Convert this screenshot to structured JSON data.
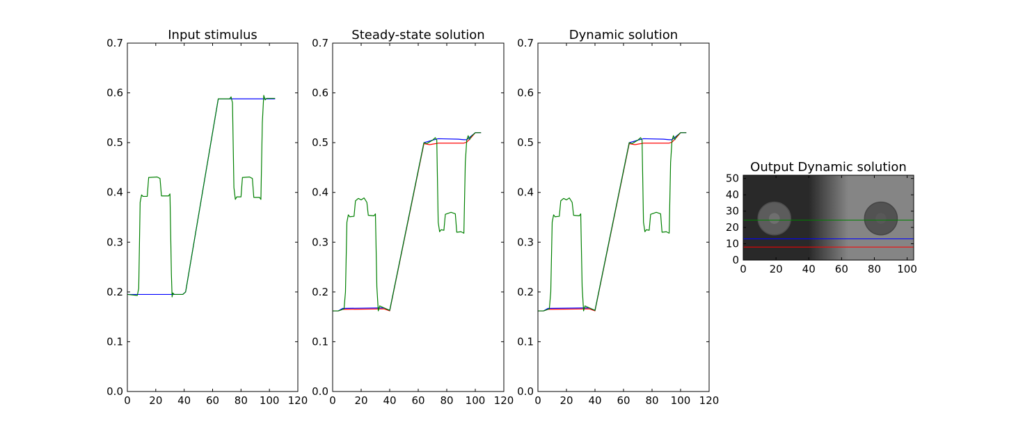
{
  "chart_data": [
    {
      "type": "line",
      "title": "Input stimulus",
      "xlim": [
        0,
        120
      ],
      "ylim": [
        0,
        0.7
      ],
      "xticks": [
        "0",
        "20",
        "40",
        "60",
        "80",
        "100",
        "120"
      ],
      "yticks": [
        "0.0",
        "0.1",
        "0.2",
        "0.3",
        "0.4",
        "0.5",
        "0.6",
        "0.7"
      ],
      "series": [
        {
          "color": "#0000ff",
          "points": [
            [
              0,
              0.195
            ],
            [
              39,
              0.195
            ],
            [
              41,
              0.2
            ],
            [
              64,
              0.588
            ],
            [
              104,
              0.588
            ]
          ]
        },
        {
          "color": "#008000",
          "points": [
            [
              0,
              0.195
            ],
            [
              7,
              0.193
            ],
            [
              8,
              0.207
            ],
            [
              9,
              0.38
            ],
            [
              10,
              0.395
            ],
            [
              11,
              0.392
            ],
            [
              14,
              0.392
            ],
            [
              15,
              0.43
            ],
            [
              21,
              0.431
            ],
            [
              23,
              0.428
            ],
            [
              24,
              0.393
            ],
            [
              29,
              0.393
            ],
            [
              30,
              0.397
            ],
            [
              31,
              0.235
            ],
            [
              31.5,
              0.19
            ],
            [
              32,
              0.198
            ],
            [
              33,
              0.195
            ],
            [
              39,
              0.195
            ],
            [
              41,
              0.2
            ],
            [
              64,
              0.588
            ],
            [
              72,
              0.588
            ],
            [
              73,
              0.592
            ],
            [
              74,
              0.58
            ],
            [
              75,
              0.41
            ],
            [
              76,
              0.386
            ],
            [
              77,
              0.391
            ],
            [
              80,
              0.391
            ],
            [
              81,
              0.43
            ],
            [
              86,
              0.431
            ],
            [
              88,
              0.428
            ],
            [
              89,
              0.39
            ],
            [
              93,
              0.39
            ],
            [
              94,
              0.386
            ],
            [
              95,
              0.54
            ],
            [
              96,
              0.595
            ],
            [
              97,
              0.586
            ],
            [
              98,
              0.589
            ],
            [
              104,
              0.589
            ]
          ]
        }
      ]
    },
    {
      "type": "line",
      "title": "Steady-state solution",
      "xlim": [
        0,
        120
      ],
      "ylim": [
        0,
        0.7
      ],
      "xticks": [
        "0",
        "20",
        "40",
        "60",
        "80",
        "100",
        "120"
      ],
      "yticks": [
        "0.0",
        "0.1",
        "0.2",
        "0.3",
        "0.4",
        "0.5",
        "0.6",
        "0.7"
      ],
      "series": [
        {
          "color": "#ff0000",
          "points": [
            [
              0,
              0.162
            ],
            [
              4,
              0.162
            ],
            [
              7,
              0.165
            ],
            [
              36,
              0.166
            ],
            [
              40,
              0.162
            ],
            [
              64,
              0.498
            ],
            [
              68,
              0.496
            ],
            [
              74,
              0.499
            ],
            [
              92,
              0.499
            ],
            [
              94,
              0.501
            ],
            [
              97,
              0.51
            ],
            [
              100,
              0.52
            ],
            [
              104,
              0.52
            ]
          ]
        },
        {
          "color": "#0000ff",
          "points": [
            [
              0,
              0.162
            ],
            [
              4,
              0.162
            ],
            [
              7,
              0.167
            ],
            [
              36,
              0.168
            ],
            [
              40,
              0.163
            ],
            [
              64,
              0.5
            ],
            [
              70,
              0.505
            ],
            [
              74,
              0.508
            ],
            [
              88,
              0.507
            ],
            [
              92,
              0.506
            ],
            [
              94,
              0.506
            ],
            [
              97,
              0.513
            ],
            [
              100,
              0.52
            ],
            [
              104,
              0.52
            ]
          ]
        },
        {
          "color": "#008000",
          "points": [
            [
              0,
              0.162
            ],
            [
              4,
              0.162
            ],
            [
              8,
              0.166
            ],
            [
              9,
              0.2
            ],
            [
              10,
              0.34
            ],
            [
              11,
              0.355
            ],
            [
              12,
              0.351
            ],
            [
              15,
              0.352
            ],
            [
              16,
              0.383
            ],
            [
              18,
              0.388
            ],
            [
              20,
              0.385
            ],
            [
              22,
              0.389
            ],
            [
              24,
              0.38
            ],
            [
              25,
              0.354
            ],
            [
              29,
              0.353
            ],
            [
              30,
              0.357
            ],
            [
              31,
              0.21
            ],
            [
              32,
              0.162
            ],
            [
              33,
              0.172
            ],
            [
              36,
              0.168
            ],
            [
              40,
              0.163
            ],
            [
              64,
              0.5
            ],
            [
              66,
              0.498
            ],
            [
              70,
              0.505
            ],
            [
              72,
              0.51
            ],
            [
              73,
              0.505
            ],
            [
              74,
              0.34
            ],
            [
              75,
              0.321
            ],
            [
              76,
              0.325
            ],
            [
              78,
              0.324
            ],
            [
              79,
              0.356
            ],
            [
              83,
              0.36
            ],
            [
              86,
              0.357
            ],
            [
              87,
              0.32
            ],
            [
              90,
              0.321
            ],
            [
              92,
              0.318
            ],
            [
              93,
              0.46
            ],
            [
              94,
              0.505
            ],
            [
              95,
              0.514
            ],
            [
              96,
              0.506
            ],
            [
              97,
              0.512
            ],
            [
              100,
              0.52
            ],
            [
              104,
              0.52
            ]
          ]
        }
      ]
    },
    {
      "type": "line",
      "title": "Dynamic solution",
      "xlim": [
        0,
        120
      ],
      "ylim": [
        0,
        0.7
      ],
      "xticks": [
        "0",
        "20",
        "40",
        "60",
        "80",
        "100",
        "120"
      ],
      "yticks": [
        "0.0",
        "0.1",
        "0.2",
        "0.3",
        "0.4",
        "0.5",
        "0.6",
        "0.7"
      ],
      "series": [
        {
          "color": "#ff0000",
          "points": [
            [
              0,
              0.162
            ],
            [
              4,
              0.162
            ],
            [
              7,
              0.165
            ],
            [
              36,
              0.166
            ],
            [
              40,
              0.162
            ],
            [
              64,
              0.498
            ],
            [
              68,
              0.496
            ],
            [
              74,
              0.499
            ],
            [
              92,
              0.499
            ],
            [
              94,
              0.501
            ],
            [
              97,
              0.51
            ],
            [
              100,
              0.52
            ],
            [
              104,
              0.52
            ]
          ]
        },
        {
          "color": "#0000ff",
          "points": [
            [
              0,
              0.162
            ],
            [
              4,
              0.162
            ],
            [
              7,
              0.167
            ],
            [
              36,
              0.168
            ],
            [
              40,
              0.163
            ],
            [
              64,
              0.5
            ],
            [
              70,
              0.505
            ],
            [
              74,
              0.508
            ],
            [
              88,
              0.507
            ],
            [
              92,
              0.506
            ],
            [
              94,
              0.506
            ],
            [
              97,
              0.513
            ],
            [
              100,
              0.52
            ],
            [
              104,
              0.52
            ]
          ]
        },
        {
          "color": "#008000",
          "points": [
            [
              0,
              0.162
            ],
            [
              4,
              0.162
            ],
            [
              8,
              0.166
            ],
            [
              9,
              0.2
            ],
            [
              10,
              0.34
            ],
            [
              11,
              0.355
            ],
            [
              12,
              0.351
            ],
            [
              15,
              0.352
            ],
            [
              16,
              0.383
            ],
            [
              18,
              0.388
            ],
            [
              20,
              0.385
            ],
            [
              22,
              0.389
            ],
            [
              24,
              0.38
            ],
            [
              25,
              0.354
            ],
            [
              29,
              0.353
            ],
            [
              30,
              0.357
            ],
            [
              31,
              0.21
            ],
            [
              32,
              0.162
            ],
            [
              33,
              0.172
            ],
            [
              36,
              0.168
            ],
            [
              40,
              0.163
            ],
            [
              64,
              0.5
            ],
            [
              66,
              0.498
            ],
            [
              70,
              0.505
            ],
            [
              72,
              0.51
            ],
            [
              73,
              0.505
            ],
            [
              74,
              0.34
            ],
            [
              75,
              0.321
            ],
            [
              76,
              0.325
            ],
            [
              78,
              0.324
            ],
            [
              79,
              0.356
            ],
            [
              83,
              0.36
            ],
            [
              86,
              0.357
            ],
            [
              87,
              0.32
            ],
            [
              90,
              0.321
            ],
            [
              92,
              0.318
            ],
            [
              93,
              0.46
            ],
            [
              94,
              0.505
            ],
            [
              95,
              0.514
            ],
            [
              96,
              0.506
            ],
            [
              97,
              0.512
            ],
            [
              100,
              0.52
            ],
            [
              104,
              0.52
            ]
          ]
        }
      ]
    },
    {
      "type": "heatmap",
      "title": "Output Dynamic solution",
      "xlim": [
        0,
        104
      ],
      "ylim": [
        0,
        52
      ],
      "xticks": [
        "0",
        "20",
        "40",
        "60",
        "80",
        "100"
      ],
      "yticks": [
        "0",
        "10",
        "20",
        "30",
        "40",
        "50"
      ],
      "background": {
        "left_value": 0.16,
        "right_value": 0.52,
        "ramp": [
          40,
          64
        ]
      },
      "discs": [
        {
          "cx": 19,
          "cy": 25.5,
          "r": 10,
          "value": 0.36,
          "center_value": 0.5
        },
        {
          "cx": 84,
          "cy": 25.5,
          "r": 10,
          "value": 0.32,
          "center_value": 0.36
        }
      ],
      "hlines": [
        {
          "y": 8,
          "color": "#ff0000"
        },
        {
          "y": 13,
          "color": "#0000ff"
        },
        {
          "y": 24.5,
          "color": "#008000"
        }
      ]
    }
  ]
}
